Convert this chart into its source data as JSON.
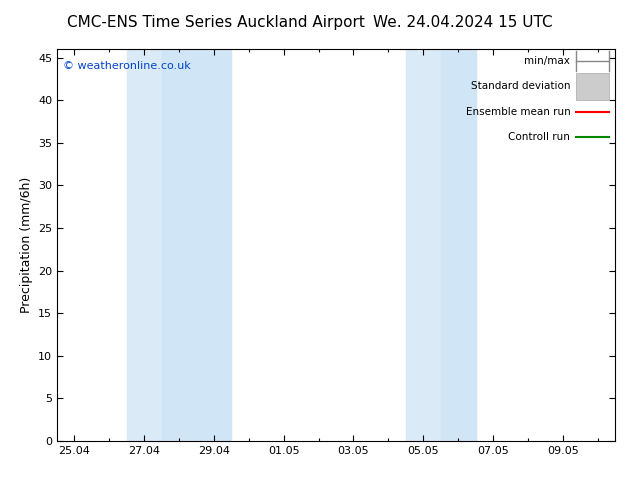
{
  "title_left": "CMC-ENS Time Series Auckland Airport",
  "title_right": "We. 24.04.2024 15 UTC",
  "ylabel": "Precipitation (mm/6h)",
  "ylabel_fontsize": 9,
  "title_fontsize": 11,
  "copyright": "© weatheronline.co.uk",
  "bg_color": "#ffffff",
  "plot_bg_color": "#ffffff",
  "ylim": [
    0,
    46
  ],
  "yticks": [
    0,
    5,
    10,
    15,
    20,
    25,
    30,
    35,
    40,
    45
  ],
  "xticklabels": [
    "25.04",
    "27.04",
    "29.04",
    "01.05",
    "03.05",
    "05.05",
    "07.05",
    "09.05"
  ],
  "xtick_positions": [
    0,
    2,
    4,
    6,
    8,
    10,
    12,
    14
  ],
  "xmin": -0.5,
  "xmax": 15.5,
  "shading_bands": [
    {
      "xmin": 1.5,
      "xmax": 2.5,
      "color": "#daeaf7"
    },
    {
      "xmin": 2.5,
      "xmax": 4.5,
      "color": "#d0e5f5"
    },
    {
      "xmin": 9.5,
      "xmax": 10.5,
      "color": "#daeaf7"
    },
    {
      "xmin": 10.5,
      "xmax": 11.5,
      "color": "#d0e5f5"
    }
  ],
  "legend_labels": [
    "min/max",
    "Standard deviation",
    "Ensemble mean run",
    "Controll run"
  ],
  "legend_colors": [
    "#888888",
    "#cccccc",
    "#ff0000",
    "#008800"
  ],
  "legend_styles": [
    "minmax",
    "stddev",
    "line",
    "line"
  ],
  "tick_color": "#000000",
  "grid_color": "#cccccc",
  "spine_color": "#000000",
  "copyright_color": "#0044cc"
}
